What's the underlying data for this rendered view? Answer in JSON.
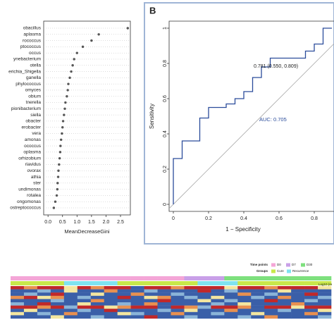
{
  "chart_data": [
    {
      "type": "dot",
      "categories": [
        "obacillus",
        "aplasma",
        "rococcus",
        "ptococcus",
        "occus",
        "ynebacterium",
        "otella",
        "erichia_Shigella",
        "ganella",
        "phylococcus",
        "omyces",
        "obium",
        "tnerella",
        "pionibacterium",
        "siella",
        "obacter",
        "erobacter",
        "vera",
        "amonas",
        "ococcus",
        "oplasma",
        "orhizobium",
        "riavidus",
        "ovorax",
        "athia",
        "ster",
        "undimonas",
        "rotalea",
        "ongomonas",
        "ostreptococcus"
      ],
      "values": [
        2.75,
        1.75,
        1.5,
        1.2,
        1.0,
        0.9,
        0.85,
        0.8,
        0.75,
        0.7,
        0.68,
        0.65,
        0.6,
        0.58,
        0.55,
        0.52,
        0.5,
        0.48,
        0.45,
        0.43,
        0.42,
        0.4,
        0.38,
        0.36,
        0.35,
        0.33,
        0.32,
        0.3,
        0.25,
        0.2
      ],
      "color": "#555555",
      "xlabel": "MeanDecreaseGini",
      "xlim": [
        -0.15,
        2.84
      ],
      "xticks": [
        {
          "value": 0,
          "label": "0.0"
        },
        0.5,
        {
          "value": 1,
          "label": "1.0"
        },
        1.5,
        {
          "value": 2,
          "label": "2.0"
        },
        2.5
      ]
    },
    {
      "type": "roc",
      "panel_label": "B",
      "xlabel": "1 − Specificity",
      "ylabel": "Sensitivity",
      "annotations": [
        "0.781 (0.550, 0.809)",
        "AUC: 0.705"
      ],
      "color": "#2b4c9b",
      "x": [
        0,
        0,
        0.05,
        0.05,
        0.15,
        0.15,
        0.2,
        0.2,
        0.3,
        0.3,
        0.35,
        0.35,
        0.4,
        0.4,
        0.45,
        0.45,
        0.5,
        0.5,
        0.55,
        0.55,
        0.75,
        0.75,
        0.8,
        0.8,
        0.85,
        0.85,
        0.9
      ],
      "y": [
        0,
        0.26,
        0.26,
        0.36,
        0.36,
        0.49,
        0.49,
        0.55,
        0.55,
        0.57,
        0.57,
        0.6,
        0.6,
        0.64,
        0.64,
        0.72,
        0.72,
        0.78,
        0.78,
        0.83,
        0.83,
        0.87,
        0.87,
        0.91,
        0.91,
        1,
        1
      ],
      "xlim": [
        -0.024,
        0.912
      ],
      "ylim": [
        -0.04,
        1.04
      ],
      "xticks": [
        0,
        0.2,
        0.4,
        0.6,
        0.8
      ],
      "yticks": [
        0,
        0.2,
        0.4,
        0.6,
        0.8,
        1
      ]
    },
    {
      "type": "heatmap",
      "legend": {
        "time_title": "Time points",
        "group_title": "Groups",
        "scale_title": "Log10 (re"
      },
      "time_points": [
        {
          "name": "D0",
          "color": "#f4a6d7"
        },
        {
          "name": "D7",
          "color": "#c9a0e8"
        },
        {
          "name": "D30",
          "color": "#7ee07e"
        }
      ],
      "groups": [
        {
          "name": "Cure",
          "color": "#c8e84a"
        },
        {
          "name": "Recurrence",
          "color": "#7fe3f0"
        }
      ],
      "column_time": [
        "D0",
        "D0",
        "D0",
        "D0",
        "D0",
        "D0",
        "D0",
        "D0",
        "D0",
        "D0",
        "D0",
        "D0",
        "D0",
        "D7",
        "D7",
        "D7",
        "D30",
        "D30",
        "D30",
        "D30",
        "D30",
        "D30",
        "D30",
        "D30"
      ],
      "column_group": [
        "Cure",
        "Cure",
        "Cure",
        "Cure",
        "Recurrence",
        "Recurrence",
        "Recurrence",
        "Recurrence",
        "Cure",
        "Cure",
        "Cure",
        "Cure",
        "Cure",
        "Cure",
        "Recurrence",
        "Recurrence",
        "Recurrence",
        "Cure",
        "Cure",
        "Cure",
        "Cure",
        "Cure",
        "Cure",
        "Cure"
      ],
      "colors": [
        "#3a5fa8",
        "#8ab4d8",
        "#f3e6a0",
        "#e89050",
        "#c0282a"
      ],
      "values": [
        [
          4,
          3,
          4,
          4,
          2,
          4,
          3,
          4,
          4,
          0,
          4,
          4,
          3,
          4,
          4,
          4,
          2,
          4,
          4,
          3,
          4,
          4,
          4,
          2
        ],
        [
          0,
          0,
          1,
          0,
          2,
          0,
          0,
          3,
          0,
          0,
          1,
          0,
          0,
          0,
          4,
          0,
          1,
          0,
          0,
          0,
          2,
          0,
          0,
          0
        ],
        [
          0,
          1,
          0,
          4,
          0,
          0,
          2,
          0,
          0,
          3,
          0,
          0,
          1,
          0,
          0,
          0,
          0,
          3,
          0,
          1,
          0,
          0,
          4,
          0
        ],
        [
          3,
          4,
          2,
          3,
          0,
          1,
          0,
          0,
          4,
          0,
          2,
          3,
          0,
          1,
          0,
          2,
          0,
          0,
          1,
          0,
          3,
          0,
          0,
          1
        ],
        [
          0,
          0,
          0,
          1,
          0,
          0,
          3,
          0,
          0,
          0,
          0,
          4,
          0,
          0,
          2,
          0,
          1,
          0,
          0,
          4,
          0,
          0,
          1,
          0
        ],
        [
          1,
          0,
          4,
          0,
          0,
          2,
          0,
          0,
          1,
          0,
          3,
          0,
          0,
          0,
          0,
          1,
          0,
          2,
          0,
          0,
          0,
          3,
          0,
          0
        ],
        [
          4,
          4,
          3,
          4,
          1,
          4,
          4,
          2,
          3,
          4,
          4,
          0,
          4,
          3,
          1,
          4,
          4,
          3,
          0,
          4,
          4,
          2,
          4,
          4
        ],
        [
          0,
          2,
          0,
          0,
          0,
          1,
          0,
          4,
          0,
          0,
          0,
          1,
          0,
          2,
          0,
          0,
          3,
          0,
          0,
          0,
          1,
          0,
          0,
          2
        ],
        [
          2,
          0,
          1,
          0,
          3,
          0,
          0,
          0,
          2,
          1,
          0,
          0,
          3,
          0,
          0,
          1,
          0,
          0,
          2,
          0,
          0,
          0,
          3,
          0
        ],
        [
          0,
          0,
          0,
          2,
          0,
          0,
          1,
          0,
          0,
          0,
          4,
          0,
          0,
          1,
          0,
          0,
          0,
          1,
          0,
          3,
          0,
          0,
          0,
          1
        ]
      ]
    }
  ]
}
